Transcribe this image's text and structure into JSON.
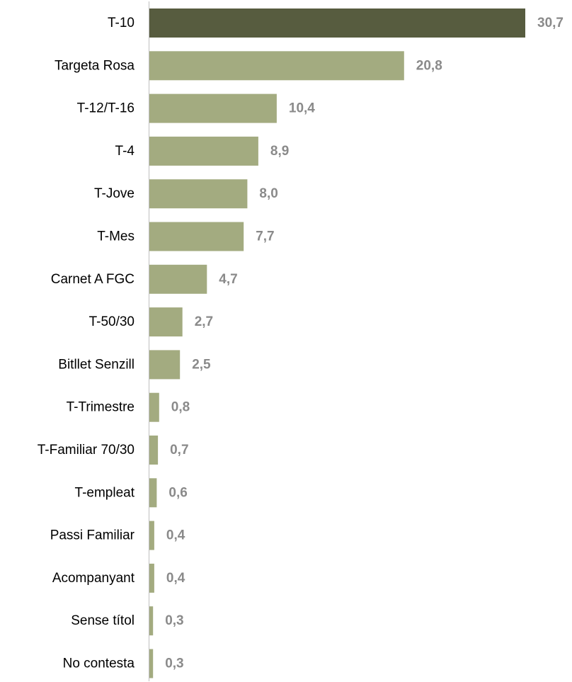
{
  "chart_data": {
    "type": "bar",
    "orientation": "horizontal",
    "categories": [
      "T-10",
      "Targeta Rosa",
      "T-12/T-16",
      "T-4",
      "T-Jove",
      "T-Mes",
      "Carnet A FGC",
      "T-50/30",
      "Bitllet Senzill",
      "T-Trimestre",
      "T-Familiar 70/30",
      "T-empleat",
      "Passi Familiar",
      "Acompanyant",
      "Sense títol",
      "No contesta"
    ],
    "values": [
      30.7,
      20.8,
      10.4,
      8.9,
      8.0,
      7.7,
      4.7,
      2.7,
      2.5,
      0.8,
      0.7,
      0.6,
      0.4,
      0.4,
      0.3,
      0.3
    ],
    "value_labels": [
      "30,7",
      "20,8",
      "10,4",
      "8,9",
      "8,0",
      "7,7",
      "4,7",
      "2,7",
      "2,5",
      "0,8",
      "0,7",
      "0,6",
      "0,4",
      "0,4",
      "0,3",
      "0,3"
    ],
    "highlight_index": 0,
    "xlim": [
      0,
      30.7
    ],
    "grid": false,
    "legend": "none",
    "colors": {
      "highlight": "#575c3f",
      "bar": "#a3ab80",
      "value_label": "#8a8a8a",
      "axis": "#bfbfbf",
      "category_label": "#000000"
    }
  }
}
